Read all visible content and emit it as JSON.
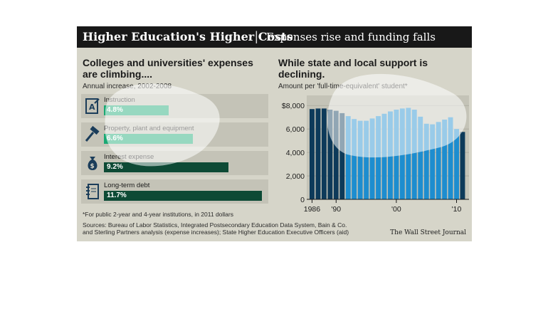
{
  "header": {
    "title": "Higher Education's Higher Costs",
    "separator": "|",
    "subtitle": "Expenses rise and funding falls"
  },
  "left_panel": {
    "heading": "Colleges and universities' expenses are climbing....",
    "subheading": "Annual increase, 2002-2008",
    "footnote": "*For public 2-year and 4-year institutions, in 2011 dollars"
  },
  "right_panel": {
    "heading": "While state and local support is declining.",
    "subheading": "Amount per 'full-time-equivalent' student*"
  },
  "sources": {
    "line1": "Sources: Bureau of Labor Statistics, Integrated Postsecondary Education Data System, Bain & Co.",
    "line2": "and Sterling Partners analysis (expense increases); State Higher Education Executive Officers (aid)",
    "credit": "The Wall Street Journal"
  },
  "colors": {
    "accent_green": "#1aa873",
    "dark_green": "#0d4a35",
    "bar_blue": "#1d8dcf",
    "bar_navy": "#0d3a5a"
  },
  "chart_data": [
    {
      "type": "bar",
      "orientation": "horizontal",
      "categories": [
        "Instruction",
        "Property, plant and equipment",
        "Interest expense",
        "Long-term debt"
      ],
      "values": [
        4.8,
        6.6,
        9.2,
        11.7
      ],
      "value_labels": [
        "4.8%",
        "6.6%",
        "9.2%",
        "11.7%"
      ],
      "icons": [
        "instruction-icon",
        "hammer-icon",
        "money-bag-icon",
        "notebook-icon"
      ],
      "title": "Colleges and universities' expenses are climbing....",
      "subtitle": "Annual increase, 2002-2008",
      "xlim": [
        0,
        12
      ]
    },
    {
      "type": "bar",
      "title": "While state and local support is declining.",
      "subtitle": "Amount per 'full-time-equivalent' student*",
      "x": [
        1986,
        1987,
        1988,
        1989,
        1990,
        1991,
        1992,
        1993,
        1994,
        1995,
        1996,
        1997,
        1998,
        1999,
        2000,
        2001,
        2002,
        2003,
        2004,
        2005,
        2006,
        2007,
        2008,
        2009,
        2010,
        2011
      ],
      "values": [
        7700,
        7750,
        7750,
        7650,
        7550,
        7350,
        7100,
        6850,
        6700,
        6700,
        6900,
        7100,
        7300,
        7500,
        7650,
        7750,
        7800,
        7650,
        7050,
        6450,
        6400,
        6600,
        6800,
        7000,
        6000,
        5750
      ],
      "xtick_labels": [
        "1986",
        "'90",
        "'00",
        "'10"
      ],
      "xticks": [
        1986,
        1990,
        2000,
        2010
      ],
      "ytick_labels": [
        "$8,000",
        "6,000",
        "4,000",
        "2,000",
        "0"
      ],
      "yticks": [
        8000,
        6000,
        4000,
        2000,
        0
      ],
      "ylim": [
        0,
        8500
      ],
      "grid": true
    }
  ]
}
